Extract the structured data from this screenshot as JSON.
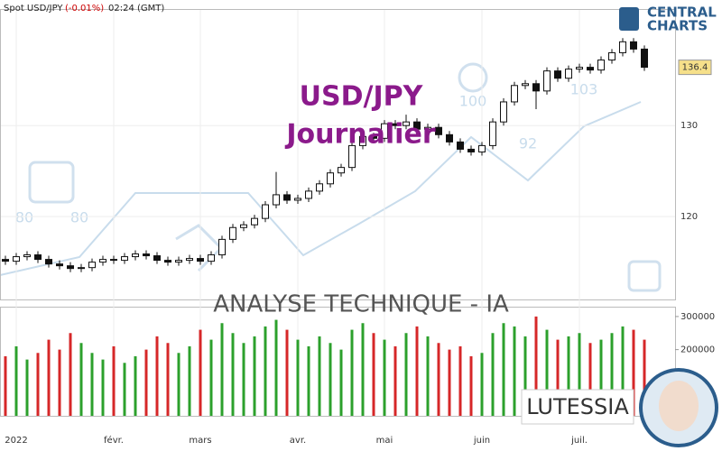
{
  "header": {
    "instrument": "Spot USD/JPY",
    "change": "(-0.01%)",
    "time": "02:24 (GMT)"
  },
  "logo": {
    "line1": "CENTRAL",
    "line2": "CHARTS"
  },
  "overlay": {
    "title": "USD/JPY",
    "subtitle": "Journalier",
    "banner": "ANALYSE TECHNIQUE - IA",
    "assistant": "LUTESSIA",
    "scores": [
      80,
      80,
      100,
      92,
      103
    ]
  },
  "chart_data": [
    {
      "type": "candlestick",
      "categories": [
        null,
        "2022",
        null,
        null,
        null,
        null,
        null,
        null,
        null,
        null,
        "févr.",
        null,
        null,
        null,
        null,
        null,
        null,
        null,
        "mars",
        null,
        null,
        null,
        null,
        null,
        null,
        null,
        null,
        "avr.",
        null,
        null,
        null,
        null,
        null,
        null,
        null,
        "mai",
        null,
        null,
        null,
        null,
        null,
        null,
        null,
        null,
        "juin",
        null,
        null,
        null,
        null,
        null,
        null,
        null,
        null,
        "juil.",
        null,
        null,
        null,
        null,
        null,
        null
      ],
      "open": [
        115.3,
        115.1,
        115.6,
        115.8,
        115.3,
        114.8,
        114.6,
        114.3,
        114.4,
        115.0,
        115.3,
        115.2,
        115.6,
        115.9,
        115.7,
        115.2,
        115.0,
        115.2,
        115.4,
        115.1,
        115.8,
        117.5,
        118.8,
        119.1,
        119.8,
        121.3,
        122.4,
        121.8,
        122.0,
        122.8,
        123.6,
        124.8,
        125.4,
        127.8,
        128.8,
        128.6,
        130.2,
        130.0,
        130.4,
        129.6,
        129.8,
        129.0,
        128.2,
        127.4,
        127.1,
        127.8,
        130.4,
        132.6,
        134.4,
        134.6,
        133.8,
        136.0,
        135.2,
        136.2,
        136.4,
        136.1,
        137.2,
        138.0,
        139.2,
        138.4
      ],
      "high": [
        115.7,
        116.0,
        116.2,
        116.2,
        115.7,
        115.2,
        115.0,
        114.8,
        115.4,
        115.7,
        115.7,
        116.0,
        116.3,
        116.3,
        116.1,
        115.6,
        115.6,
        115.8,
        115.8,
        116.2,
        117.9,
        119.2,
        119.5,
        120.2,
        121.7,
        124.9,
        122.8,
        122.4,
        123.2,
        124.0,
        125.2,
        125.8,
        128.2,
        129.2,
        129.2,
        130.6,
        130.6,
        131.2,
        130.8,
        130.2,
        130.2,
        129.4,
        128.6,
        127.8,
        128.2,
        130.8,
        133.0,
        134.8,
        135.0,
        135.0,
        136.4,
        136.4,
        136.6,
        136.8,
        136.8,
        137.6,
        138.4,
        139.6,
        139.6,
        138.8
      ],
      "low": [
        114.7,
        114.7,
        115.2,
        114.9,
        114.4,
        114.2,
        113.9,
        113.9,
        114.0,
        114.6,
        114.8,
        114.8,
        115.2,
        115.3,
        114.8,
        114.6,
        114.6,
        114.8,
        114.7,
        114.7,
        115.4,
        117.1,
        118.4,
        118.7,
        119.4,
        120.9,
        121.4,
        121.4,
        121.6,
        122.4,
        123.2,
        124.4,
        125.0,
        127.4,
        128.2,
        128.2,
        129.6,
        129.6,
        129.2,
        129.2,
        128.6,
        127.8,
        127.0,
        126.7,
        126.7,
        127.4,
        130.0,
        132.2,
        134.0,
        131.8,
        133.4,
        134.8,
        134.8,
        135.8,
        135.7,
        135.7,
        136.8,
        137.6,
        138.0,
        136.0
      ],
      "close": [
        115.1,
        115.6,
        115.8,
        115.3,
        114.8,
        114.6,
        114.3,
        114.4,
        115.0,
        115.3,
        115.2,
        115.6,
        115.9,
        115.7,
        115.2,
        115.0,
        115.2,
        115.4,
        115.1,
        115.8,
        117.5,
        118.8,
        119.1,
        119.8,
        121.3,
        122.4,
        121.8,
        122.0,
        122.8,
        123.6,
        124.8,
        125.4,
        127.8,
        128.8,
        128.6,
        130.2,
        130.0,
        130.4,
        129.6,
        129.8,
        129.0,
        128.2,
        127.4,
        127.1,
        127.8,
        130.4,
        132.6,
        134.4,
        134.6,
        133.8,
        136.0,
        135.2,
        136.2,
        136.4,
        136.1,
        137.2,
        138.0,
        139.2,
        138.4,
        136.4
      ],
      "ylim": [
        110.9,
        142.8
      ],
      "yticks": [
        120,
        130
      ],
      "last_price": 136.4,
      "up_color": "#ffffff",
      "down_color": "#111111",
      "grid": true
    },
    {
      "type": "bar",
      "values": [
        180000,
        210000,
        170000,
        190000,
        230000,
        200000,
        250000,
        220000,
        190000,
        170000,
        210000,
        160000,
        180000,
        200000,
        240000,
        220000,
        190000,
        210000,
        260000,
        230000,
        280000,
        250000,
        220000,
        240000,
        270000,
        290000,
        260000,
        230000,
        210000,
        240000,
        220000,
        200000,
        260000,
        280000,
        250000,
        230000,
        210000,
        250000,
        270000,
        240000,
        220000,
        200000,
        210000,
        180000,
        190000,
        250000,
        280000,
        270000,
        240000,
        300000,
        260000,
        230000,
        240000,
        250000,
        220000,
        230000,
        250000,
        270000,
        260000,
        230000
      ],
      "ylim": [
        0,
        327000
      ],
      "yticks": [
        200000,
        300000
      ],
      "up_color": "#2ca02c",
      "down_color": "#d62728"
    }
  ]
}
